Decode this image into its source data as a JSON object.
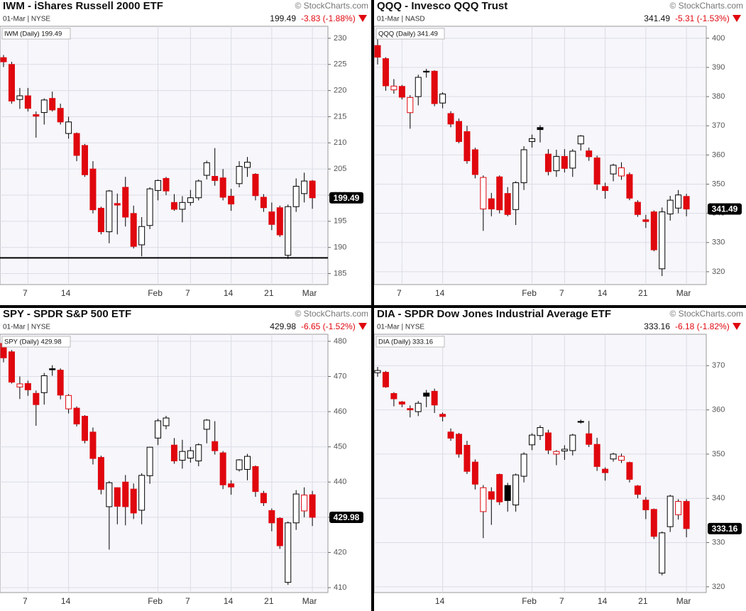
{
  "chart_data": [
    {
      "type": "candlestick",
      "title": "IWM - iShares Russell 2000 ETF",
      "subtitle": "01-Mar | NYSE",
      "change": "-3.83 (-1.88%)",
      "credit": "© StockCharts.com",
      "legend": "IWM (Daily) 199.49",
      "categories": [
        null,
        null,
        null,
        "7",
        null,
        null,
        null,
        null,
        "14",
        null,
        null,
        null,
        null,
        null,
        null,
        null,
        null,
        null,
        null,
        "Feb",
        null,
        null,
        null,
        "7",
        null,
        null,
        null,
        null,
        "14",
        null,
        null,
        null,
        null,
        "21",
        null,
        null,
        null,
        null,
        "Mar"
      ],
      "open": [
        226.3,
        225,
        218.3,
        219,
        215.4,
        215.8,
        218.5,
        216.6,
        211.8,
        211.8,
        209.5,
        205,
        197.5,
        193,
        198.4,
        201.5,
        196.5,
        190.5,
        194.2,
        200.9,
        203.2,
        198.6,
        197.3,
        198.6,
        199.5,
        203.8,
        203.6,
        203.3,
        199.8,
        202.2,
        205.3,
        204,
        199.6,
        196.8,
        197.6,
        188.5,
        197.8,
        200.3,
        202.7
      ],
      "high": [
        226.8,
        225.5,
        220.5,
        220.5,
        216,
        218.5,
        219.8,
        217.5,
        215,
        212,
        209.8,
        206.5,
        197.8,
        201,
        200.3,
        203.5,
        198,
        195.8,
        201.5,
        203,
        203.5,
        200.2,
        199.8,
        201,
        203,
        206.6,
        209,
        205,
        201.2,
        206.5,
        207.3,
        204.2,
        200.2,
        198.6,
        198,
        198.2,
        203.2,
        204.3,
        202.9
      ],
      "low": [
        224.5,
        217.5,
        216.5,
        216,
        211,
        213.5,
        216,
        213.5,
        210.8,
        206.5,
        203.5,
        196.5,
        192.5,
        190.8,
        192.5,
        194,
        189.8,
        188.3,
        193.5,
        199,
        200,
        197,
        194.8,
        198,
        199,
        203,
        201.8,
        199,
        197,
        201.5,
        203.5,
        199,
        196.8,
        193.3,
        192,
        187.8,
        196.8,
        198.6,
        197.4
      ],
      "close": [
        225.5,
        218,
        219,
        216.6,
        215.1,
        218.2,
        216.3,
        214,
        214,
        207.6,
        203.9,
        197.2,
        193,
        200.8,
        198.1,
        195.8,
        190.2,
        194,
        201.2,
        202.8,
        200.8,
        197.3,
        198.6,
        199.5,
        202.7,
        206.2,
        202.8,
        199.6,
        198.3,
        205.5,
        206.3,
        199.9,
        197.6,
        194.4,
        192.4,
        197.8,
        201.7,
        202.7,
        199.49
      ],
      "ylim": [
        182.9,
        232.3
      ],
      "yticks": [
        185,
        190,
        195,
        200,
        205,
        210,
        215,
        220,
        225,
        230
      ],
      "hline": 188,
      "grid": true,
      "up_color": "#000000",
      "down_color": "#e0070e"
    },
    {
      "type": "candlestick",
      "title": "QQQ - Invesco QQQ Trust",
      "subtitle": "01-Mar | NASD",
      "change": "-5.31 (-1.53%)",
      "credit": "© StockCharts.com",
      "legend": "QQQ (Daily) 341.49",
      "categories": [
        null,
        null,
        null,
        "7",
        null,
        null,
        null,
        null,
        "14",
        null,
        null,
        null,
        null,
        null,
        null,
        null,
        null,
        null,
        null,
        "Feb",
        null,
        null,
        null,
        "7",
        null,
        null,
        null,
        null,
        "14",
        null,
        null,
        null,
        null,
        "21",
        null,
        null,
        null,
        null,
        "Mar"
      ],
      "open": [
        397.5,
        393,
        382.3,
        383.5,
        374.5,
        380,
        388.7,
        388.7,
        377.8,
        374.2,
        371.5,
        368,
        361.8,
        341.5,
        345,
        352.5,
        346.8,
        341.3,
        350.5,
        364.6,
        369.4,
        360.3,
        354.6,
        359.5,
        355.5,
        363.8,
        361.4,
        359,
        349.2,
        353.5,
        352.8,
        353.3,
        343.8,
        337.8,
        340.5,
        321,
        339.8,
        341.8,
        345.8
      ],
      "high": [
        401,
        393.5,
        386,
        384,
        380.5,
        387.5,
        389.5,
        389,
        381.5,
        375,
        372.5,
        370,
        362.5,
        353,
        347,
        353,
        349,
        351,
        363,
        367,
        370.2,
        362,
        361.8,
        362,
        362,
        366.8,
        362.5,
        359.8,
        350.5,
        357,
        357.5,
        354,
        344.5,
        339.5,
        341,
        342,
        346,
        348,
        346.7
      ],
      "low": [
        391,
        382,
        381,
        379,
        369,
        377,
        386.5,
        376.7,
        376,
        369.5,
        364,
        357,
        352,
        334,
        339,
        340,
        339,
        336,
        348,
        362.5,
        364.3,
        353,
        352.5,
        354,
        352.5,
        361.5,
        358,
        348,
        345,
        351,
        351.5,
        344.5,
        338.8,
        335,
        327,
        318.5,
        337.5,
        340,
        339
      ],
      "close": [
        393.5,
        383.7,
        383.6,
        379.8,
        379.7,
        386.6,
        388.4,
        377.6,
        380.9,
        370.6,
        364.6,
        358,
        353.3,
        352.3,
        341.5,
        341.2,
        339.6,
        350.5,
        361.8,
        365.6,
        368.7,
        354.3,
        359.5,
        355.4,
        361.3,
        366.5,
        359.4,
        350,
        347.8,
        356.5,
        355.6,
        345.2,
        339.6,
        337.2,
        327.5,
        340.5,
        344.5,
        346.3,
        341.49
      ],
      "ylim": [
        315.6,
        404.1
      ],
      "yticks": [
        320,
        330,
        340,
        350,
        360,
        370,
        380,
        390,
        400
      ],
      "grid": true,
      "up_color": "#000000",
      "down_color": "#e0070e"
    },
    {
      "type": "candlestick",
      "title": "SPY - SPDR S&P 500 ETF",
      "subtitle": "01-Mar | NYSE",
      "change": "-6.65 (-1.52%)",
      "credit": "© StockCharts.com",
      "legend": "SPY (Daily) 429.98",
      "categories": [
        null,
        null,
        null,
        "7",
        null,
        null,
        null,
        null,
        "14",
        null,
        null,
        null,
        null,
        null,
        null,
        null,
        null,
        null,
        null,
        "Feb",
        null,
        null,
        null,
        "7",
        null,
        null,
        null,
        null,
        "14",
        null,
        null,
        null,
        null,
        "21",
        null,
        null,
        null,
        null,
        "Mar"
      ],
      "open": [
        479.4,
        477,
        467,
        468,
        465.2,
        465.4,
        472.2,
        471.8,
        460.8,
        461,
        458.7,
        454.2,
        447,
        433,
        438.4,
        440,
        438,
        432,
        441.8,
        452.5,
        456,
        450.5,
        446.2,
        446.8,
        446,
        455,
        451.5,
        448.3,
        439.5,
        443.5,
        443.6,
        444.4,
        436.8,
        431.9,
        429.7,
        411.5,
        428.4,
        431.8,
        436.4
      ],
      "high": [
        480,
        477.5,
        470,
        468.8,
        466,
        471,
        473.2,
        472.3,
        465,
        461.5,
        459,
        455.5,
        447.5,
        440.3,
        438.5,
        442,
        439.6,
        442.5,
        450,
        458,
        458.8,
        452.5,
        452,
        450,
        451,
        457.9,
        457.3,
        448.8,
        440.5,
        446.5,
        448,
        444.7,
        437.5,
        432.5,
        430,
        428.8,
        437.7,
        438.5,
        437.5
      ],
      "low": [
        474,
        468,
        463.6,
        464.5,
        456,
        462,
        470.2,
        463.5,
        459.5,
        455.8,
        451,
        445,
        436.5,
        420.8,
        428,
        427.7,
        429.5,
        428,
        439.5,
        450.5,
        455,
        445.2,
        443.8,
        445.5,
        444.5,
        451,
        447.8,
        438,
        436.4,
        443,
        440.5,
        435.8,
        433.2,
        426,
        421,
        410.8,
        426.4,
        430,
        427.5
      ],
      "close": [
        475.3,
        468.4,
        467.9,
        466.2,
        462,
        470.2,
        471.9,
        464.7,
        464.6,
        456.5,
        451.8,
        446.7,
        437.9,
        439.8,
        433.1,
        433,
        431.2,
        441.9,
        449.9,
        457.4,
        458.2,
        446,
        448.7,
        448.9,
        450.6,
        457.6,
        448.9,
        439.2,
        438.6,
        446.3,
        447.3,
        437.3,
        434.1,
        428.4,
        421.9,
        428.4,
        436.6,
        436.3,
        429.98
      ],
      "ylim": [
        408.6,
        482
      ],
      "yticks": [
        410,
        420,
        430,
        440,
        450,
        460,
        470,
        480
      ],
      "grid": true,
      "up_color": "#000000",
      "down_color": "#e0070e"
    },
    {
      "type": "candlestick",
      "title": "DIA - SPDR Dow Jones Industrial Average ETF",
      "subtitle": "01-Mar | NYSE",
      "change": "-6.18 (-1.82%)",
      "credit": "© StockCharts.com",
      "legend": "DIA (Daily) 333.16",
      "categories": [
        null,
        null,
        null,
        null,
        null,
        null,
        null,
        null,
        "14",
        null,
        null,
        null,
        null,
        null,
        null,
        null,
        null,
        null,
        null,
        "Feb",
        null,
        null,
        null,
        "7",
        null,
        null,
        null,
        null,
        "14",
        null,
        null,
        null,
        null,
        "21",
        null,
        null,
        null,
        null,
        "Mar"
      ],
      "open": [
        368.4,
        368.5,
        363.7,
        361.8,
        360.3,
        359.6,
        363.8,
        364.2,
        359,
        355,
        354.5,
        352,
        348.2,
        337,
        341.5,
        345.4,
        342.9,
        338.5,
        345,
        352.1,
        354.2,
        354.8,
        350,
        350.7,
        350.8,
        357.4,
        354.6,
        352.2,
        346.6,
        348.9,
        348.6,
        348.1,
        342.8,
        339.6,
        337.5,
        323.1,
        333.6,
        336.3,
        339.3
      ],
      "high": [
        369.7,
        368.8,
        364,
        362,
        361,
        362,
        364.5,
        364.8,
        359.4,
        355.8,
        354.8,
        353,
        348.8,
        343,
        342.5,
        345.6,
        343.5,
        345.6,
        350.4,
        354.7,
        356.5,
        355.5,
        350.9,
        352,
        354.6,
        357.8,
        357.5,
        353.7,
        347,
        350.3,
        350.1,
        348.3,
        343,
        340.3,
        337.7,
        332.5,
        340.8,
        339.8,
        339.8
      ],
      "low": [
        367.5,
        365,
        360.8,
        360.6,
        358.3,
        358.6,
        360.6,
        359.3,
        357.4,
        353,
        349.2,
        345.5,
        342,
        331,
        334,
        338.5,
        337,
        337,
        343.6,
        350.9,
        353.2,
        350,
        347.5,
        348.7,
        349.7,
        356.9,
        351.6,
        346.2,
        344,
        348.3,
        348,
        343.6,
        340,
        335.3,
        330.8,
        322.6,
        332.4,
        335.2,
        331.2
      ],
      "close": [
        368.9,
        365.2,
        362.5,
        361.3,
        360,
        361.5,
        363.1,
        361.1,
        358.5,
        353.6,
        350,
        346.1,
        343.2,
        342.4,
        339.8,
        339.2,
        339.5,
        345.3,
        350,
        354.3,
        356,
        350.9,
        350.6,
        351.1,
        354.3,
        357.2,
        352.2,
        347.2,
        345.8,
        350,
        349.5,
        344.3,
        340.9,
        337.4,
        331.4,
        332.2,
        340.5,
        339.3,
        333.16
      ],
      "ylim": [
        318.7,
        377.1
      ],
      "yticks": [
        320,
        330,
        340,
        350,
        360,
        370
      ],
      "grid": true,
      "up_color": "#000000",
      "down_color": "#e0070e"
    }
  ]
}
